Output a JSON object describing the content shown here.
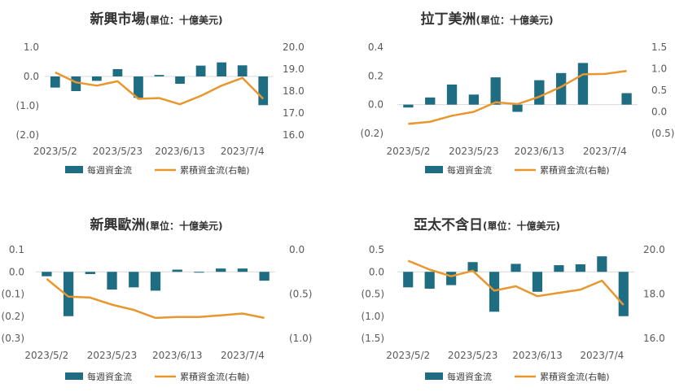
{
  "colors": {
    "bar": "#1f6d83",
    "line": "#e8962e",
    "negative_tick": "#c00000",
    "text": "#333333",
    "grid": "#d9d9d9"
  },
  "legend": {
    "bar": "每週資金流",
    "line": "累積資金流(右軸)"
  },
  "chart_data": [
    {
      "type": "bar",
      "title": "新興市場",
      "subtitle": "(單位：十億美元)",
      "x_ticks": [
        "2023/5/2",
        "2023/5/23",
        "2023/6/13",
        "2023/7/4"
      ],
      "left_axis": {
        "ylim": [
          -2.0,
          1.0
        ],
        "ticks": [
          1.0,
          0.0,
          -1.0,
          -2.0
        ],
        "labels": [
          "1.0",
          "0.0",
          "(1.0)",
          "(2.0)"
        ]
      },
      "right_axis": {
        "ylim": [
          16.0,
          20.0
        ],
        "ticks": [
          20.0,
          19.0,
          18.0,
          17.0,
          16.0
        ],
        "labels": [
          "20.0",
          "19.0",
          "18.0",
          "17.0",
          "16.0"
        ]
      },
      "series": [
        {
          "name": "每週資金流",
          "axis": "left",
          "values": [
            -0.38,
            -0.5,
            -0.15,
            0.25,
            -0.73,
            0.05,
            -0.25,
            0.37,
            0.48,
            0.38,
            -0.98
          ]
        },
        {
          "name": "累積資金流(右軸)",
          "axis": "right",
          "values": [
            18.85,
            18.4,
            18.25,
            18.45,
            17.65,
            17.68,
            17.4,
            17.78,
            18.25,
            18.6,
            17.65
          ]
        }
      ],
      "grid": false,
      "legend_position": "bottom"
    },
    {
      "type": "bar",
      "title": "拉丁美洲",
      "subtitle": "(單位：十億美元)",
      "x_ticks": [
        "2023/5/2",
        "2023/5/23",
        "2023/6/13",
        "2023/7/4"
      ],
      "left_axis": {
        "ylim": [
          -0.2,
          0.4
        ],
        "ticks": [
          0.4,
          0.2,
          0.0,
          -0.2
        ],
        "labels": [
          "0.4",
          "0.2",
          "0.0",
          "(0.2)"
        ]
      },
      "right_axis": {
        "ylim": [
          -0.5,
          1.5
        ],
        "ticks": [
          1.5,
          1.0,
          0.5,
          0.0,
          -0.5
        ],
        "labels": [
          "1.5",
          "1.0",
          "0.5",
          "0.0",
          "(0.5)"
        ]
      },
      "series": [
        {
          "name": "每週資金流",
          "axis": "left",
          "values": [
            -0.02,
            0.05,
            0.14,
            0.07,
            0.19,
            -0.05,
            0.17,
            0.22,
            0.29,
            null,
            0.08
          ]
        },
        {
          "name": "累積資金流(右軸)",
          "axis": "right",
          "values": [
            -0.28,
            -0.23,
            -0.09,
            0.0,
            0.22,
            0.18,
            0.35,
            0.58,
            0.87,
            0.88,
            0.95
          ]
        }
      ],
      "grid": false,
      "legend_position": "bottom"
    },
    {
      "type": "bar",
      "title": "新興歐洲",
      "subtitle": "(單位：十億美元)",
      "x_ticks": [
        "2023/5/2",
        "2023/5/23",
        "2023/6/13",
        "2023/7/4"
      ],
      "left_axis": {
        "ylim": [
          -0.3,
          0.1
        ],
        "ticks": [
          0.1,
          0.0,
          -0.1,
          -0.2,
          -0.3
        ],
        "labels": [
          "0.1",
          "0.0",
          "(0.1)",
          "(0.2)",
          "(0.3)"
        ]
      },
      "right_axis": {
        "ylim": [
          -1.0,
          0.0
        ],
        "ticks": [
          0.0,
          -0.5,
          -1.0
        ],
        "labels": [
          "0.0",
          "(0.5)",
          "(1.0)"
        ]
      },
      "series": [
        {
          "name": "每週資金流",
          "axis": "left",
          "values": [
            -0.02,
            -0.2,
            -0.01,
            -0.08,
            -0.07,
            -0.085,
            0.01,
            0.0,
            0.015,
            0.015,
            -0.04
          ]
        },
        {
          "name": "累積資金流(右軸)",
          "axis": "right",
          "values": [
            -0.33,
            -0.53,
            -0.54,
            -0.62,
            -0.68,
            -0.77,
            -0.76,
            -0.76,
            -0.74,
            -0.72,
            -0.77
          ]
        }
      ],
      "grid": false,
      "legend_position": "bottom"
    },
    {
      "type": "bar",
      "title": "亞太不含日",
      "subtitle": "(單位：十億美元)",
      "x_ticks": [
        "2023/5/2",
        "2023/5/23",
        "2023/6/13",
        "2023/7/4"
      ],
      "left_axis": {
        "ylim": [
          -1.5,
          0.5
        ],
        "ticks": [
          0.5,
          0.0,
          -0.5,
          -1.0,
          -1.5
        ],
        "labels": [
          "0.5",
          "0.0",
          "(0.5)",
          "(1.0)",
          "(1.5)"
        ]
      },
      "right_axis": {
        "ylim": [
          16.0,
          20.0
        ],
        "ticks": [
          20.0,
          18.0,
          16.0
        ],
        "labels": [
          "20.0",
          "18.0",
          "16.0"
        ]
      },
      "series": [
        {
          "name": "每週資金流",
          "axis": "left",
          "values": [
            -0.35,
            -0.38,
            -0.3,
            0.22,
            -0.9,
            0.18,
            -0.45,
            0.15,
            0.17,
            0.35,
            -1.0
          ]
        },
        {
          "name": "累積資金流(右軸)",
          "axis": "right",
          "values": [
            19.5,
            19.1,
            18.8,
            19.05,
            18.15,
            18.35,
            17.9,
            18.05,
            18.2,
            18.6,
            17.5
          ]
        }
      ],
      "grid": false,
      "legend_position": "bottom"
    }
  ]
}
